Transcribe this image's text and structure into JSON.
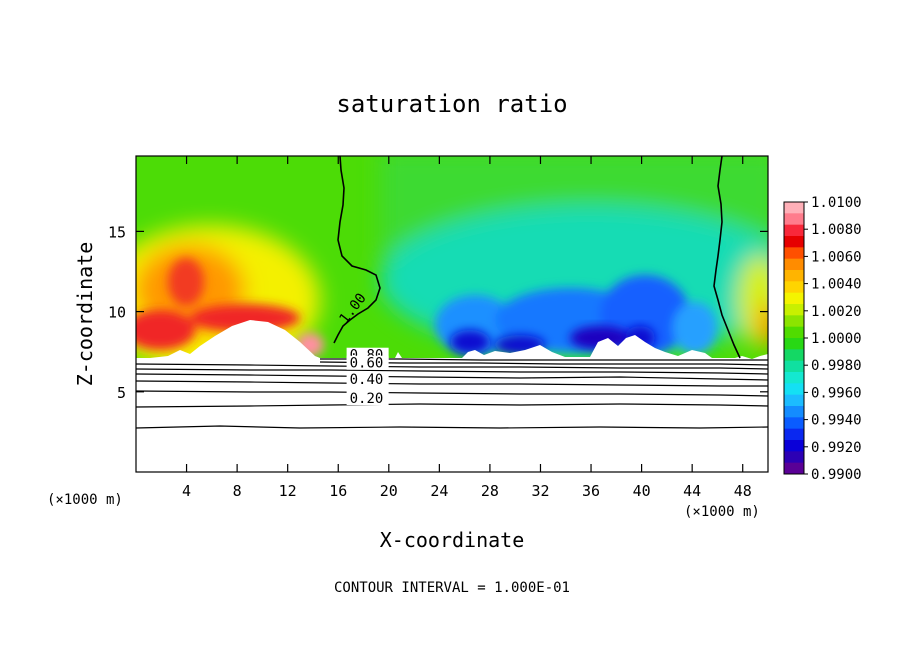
{
  "chart_data": {
    "type": "heatmap",
    "title": "saturation ratio",
    "xlabel": "X-coordinate",
    "ylabel": "Z-coordinate",
    "x_unit": "(×1000 m)",
    "x_unit_right": "(×1000 m)",
    "xlim": [
      0,
      50
    ],
    "ylim": [
      0,
      19.7
    ],
    "x_ticks": [
      4,
      8,
      12,
      16,
      20,
      24,
      28,
      32,
      36,
      40,
      44,
      48
    ],
    "y_ticks": [
      5,
      10,
      15
    ],
    "footer": "CONTOUR INTERVAL = 1.000E-01",
    "colorbar": {
      "min": 0.99,
      "max": 1.01,
      "labels": [
        "1.0100",
        "1.0080",
        "1.0060",
        "1.0040",
        "1.0020",
        "1.0000",
        "0.9980",
        "0.9960",
        "0.9940",
        "0.9920",
        "0.9900"
      ],
      "colors": [
        "#ffb0b8",
        "#ff7c8c",
        "#f8283a",
        "#e60000",
        "#ff5000",
        "#ff8c00",
        "#ffb400",
        "#ffd400",
        "#f4f400",
        "#c8f000",
        "#8ce400",
        "#50dc00",
        "#28d814",
        "#14d864",
        "#10e0a0",
        "#14e8d0",
        "#14e0f4",
        "#1cbcff",
        "#148cff",
        "#0a5cff",
        "#0a28f0",
        "#0a00d8",
        "#2c00b4",
        "#5a0096"
      ]
    },
    "contour_labels": [
      {
        "text": "1.00",
        "x": 16.6,
        "z": 9.2
      },
      {
        "text": "0.80",
        "x": 16.9,
        "z": 7.0
      },
      {
        "text": "0.60",
        "x": 16.9,
        "z": 6.5
      },
      {
        "text": "0.40",
        "x": 16.9,
        "z": 5.5
      },
      {
        "text": "0.20",
        "x": 16.9,
        "z": 4.3
      }
    ]
  }
}
